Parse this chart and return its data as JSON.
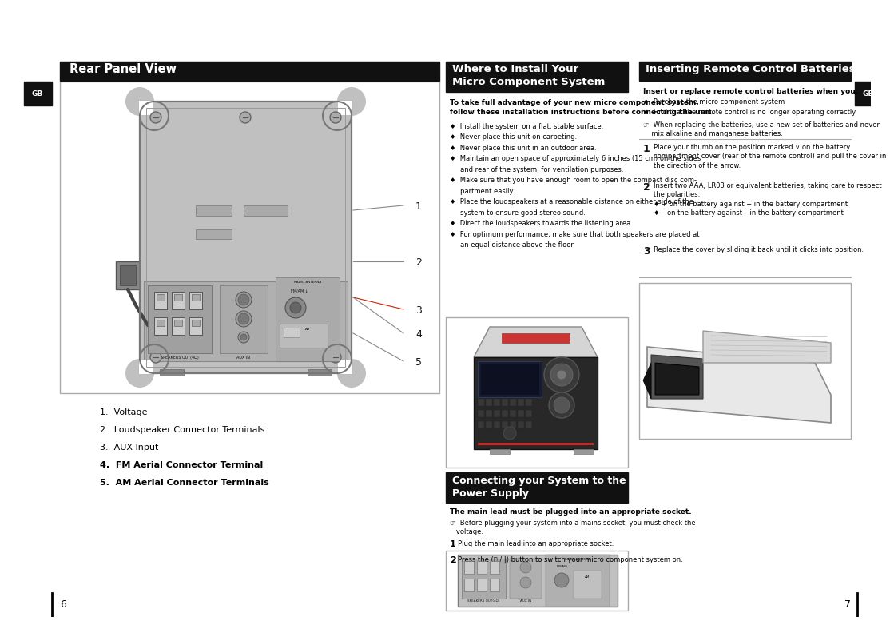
{
  "bg_color": "#ffffff",
  "header_bg": "#000000",
  "header_text_color": "#ffffff",
  "section1_title": "Rear Panel View",
  "section2_title": "Where to Install Your\nMicro Component System",
  "section3_title": "Inserting Remote Control Batteries",
  "section4_title": "Connecting your System to the\nPower Supply",
  "numbered_items": [
    "1.  Voltage",
    "2.  Loudspeaker Connector Terminals",
    "3.  AUX-Input",
    "4.  FM Aerial Connector Terminal",
    "5.  AM Aerial Connector Terminals"
  ],
  "install_intro_line1": "To take full advantage of your new micro component system,",
  "install_intro_line2": "follow these installation instructions before connecting the unit.",
  "install_bullets": [
    "♦  Install the system on a flat, stable surface.",
    "♦  Never place this unit on carpeting.",
    "♦  Never place this unit in an outdoor area.",
    "♦  Maintain an open space of approximately 6 inches (15 cm) on the sides",
    "     and rear of the system, for ventilation purposes.",
    "♦  Make sure that you have enough room to open the compact disc com-",
    "     partment easily.",
    "♦  Place the loudspeakers at a reasonable distance on either side of the",
    "     system to ensure good stereo sound.",
    "♦  Direct the loudspeakers towards the listening area.",
    "♦  For optimum performance, make sure that both speakers are placed at",
    "     an equal distance above the floor."
  ],
  "battery_intro_bold": "Insert or replace remote control batteries when you:",
  "battery_bullets": [
    "♦  Purchase the micro component system",
    "♦  Find that the remote control is no longer operating correctly"
  ],
  "battery_note": "☞  When replacing the batteries, use a new set of batteries and never\n    mix alkaline and manganese batteries.",
  "battery_steps": [
    "Place your thumb on the position marked ∨ on the battery\ncompartment cover (rear of the remote control) and pull the cover in\nthe direction of the arrow.",
    "Insert two AAA, LR03 or equivalent batteries, taking care to respect\nthe polarities:\n♦ + on the battery against + in the battery compartment\n♦ – on the battery against – in the battery compartment",
    "Replace the cover by sliding it back until it clicks into position."
  ],
  "power_intro_bold": "The main lead must be plugged into an appropriate socket.",
  "power_note": "☞  Before plugging your system into a mains socket, you must check the\n   voltage.",
  "power_steps": [
    "Plug the main lead into an appropriate socket.",
    "Press the (⏻ / |) button to switch your micro component system on."
  ],
  "line_numbers": [
    "1",
    "2",
    "3",
    "4",
    "5"
  ],
  "page_left": "6",
  "page_right": "7"
}
